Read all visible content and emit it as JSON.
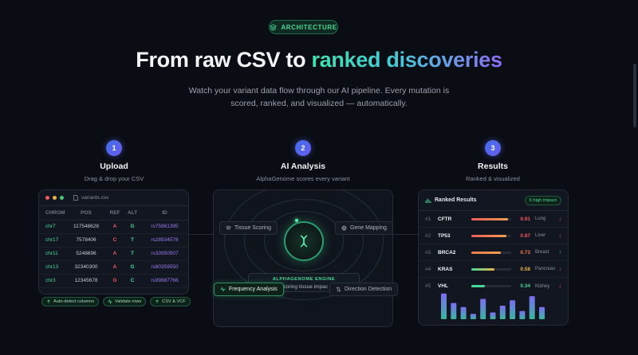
{
  "badge": {
    "label": "ARCHITECTURE",
    "icon": "layers-icon"
  },
  "hero": {
    "title_plain": "From raw CSV to ",
    "title_accent": "ranked discoveries",
    "subtitle_line1": "Watch your variant data flow through our AI pipeline. Every mutation is",
    "subtitle_line2": "scored, ranked, and visualized — automatically."
  },
  "steps": [
    {
      "num": "1",
      "title": "Upload",
      "desc": "Drag & drop your CSV"
    },
    {
      "num": "2",
      "title": "AI Analysis",
      "desc": "AlphaGenome scores every variant"
    },
    {
      "num": "3",
      "title": "Results",
      "desc": "Ranked & visualized"
    }
  ],
  "upload": {
    "filename": "variants.csv",
    "columns": [
      "CHROM",
      "POS",
      "REF",
      "ALT",
      "ID"
    ],
    "rows": [
      [
        "chr7",
        "117548628",
        "A",
        "G",
        "rs75961395"
      ],
      [
        "chr17",
        "7578406",
        "C",
        "T",
        "rs28934578"
      ],
      [
        "chr11",
        "5248696",
        "A",
        "T",
        "rs33950507"
      ],
      [
        "chr13",
        "32340300",
        "A",
        "G",
        "rs80359550"
      ],
      [
        "chr3",
        "12345678",
        "G",
        "C",
        "rs99887766"
      ]
    ],
    "chips": [
      "Auto-detect columns",
      "Validate rows",
      "CSV & VCF"
    ]
  },
  "ai": {
    "engine_label": "ALPHAGENOME ENGINE",
    "engine_status": "Scoring tissue impac",
    "pills": {
      "tissue": "Tissue Scoring",
      "gene": "Gene Mapping",
      "frequency": "Frequency Analysis",
      "direction": "Direction Detection"
    }
  },
  "results": {
    "title": "Ranked Results",
    "tag": "5 high impact",
    "rows": [
      {
        "rank": "#1",
        "gene": "CFTR",
        "score": "0.91",
        "value": 0.91,
        "tissue": "Lung",
        "arrow": "↓",
        "dir": "down"
      },
      {
        "rank": "#2",
        "gene": "TP53",
        "score": "0.87",
        "value": 0.87,
        "tissue": "Liver",
        "arrow": "↓",
        "dir": "down"
      },
      {
        "rank": "#3",
        "gene": "BRCA2",
        "score": "0.73",
        "value": 0.73,
        "tissue": "Breast",
        "arrow": "↑",
        "dir": "up"
      },
      {
        "rank": "#4",
        "gene": "KRAS",
        "score": "0.58",
        "value": 0.58,
        "tissue": "Pancreas",
        "arrow": "↓",
        "dir": "down"
      },
      {
        "rank": "#5",
        "gene": "VHL",
        "score": "0.34",
        "value": 0.34,
        "tissue": "Kidney",
        "arrow": "↓",
        "dir": "down"
      }
    ],
    "mini_bars": [
      0.95,
      0.6,
      0.45,
      0.2,
      0.75,
      0.25,
      0.5,
      0.7,
      0.3,
      0.85,
      0.45
    ]
  },
  "colors": {
    "accent_green": "#48d89a",
    "accent_purple": "#8a6cf2",
    "danger": "#ef5a5a"
  }
}
